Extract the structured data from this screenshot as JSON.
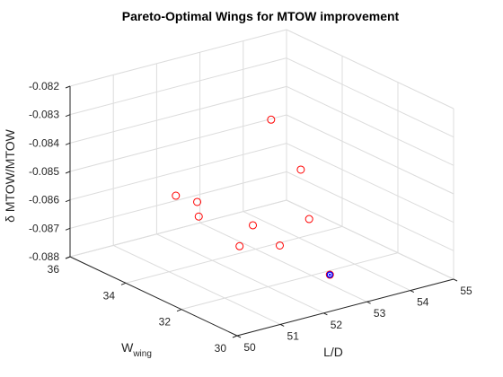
{
  "chart_data": {
    "type": "scatter3d",
    "title": "Pareto-Optimal Wings for MTOW improvement",
    "xlabel": "L/D",
    "ylabel_base": "W",
    "ylabel_sub": "wing",
    "zlabel": "δ MTOW/MTOW",
    "xlim": [
      50,
      55
    ],
    "ylim": [
      30,
      36
    ],
    "zlim": [
      -0.088,
      -0.082
    ],
    "xticks": [
      "50",
      "51",
      "52",
      "53",
      "54",
      "55"
    ],
    "yticks": [
      "30",
      "32",
      "34",
      "36"
    ],
    "zticks": [
      "-0.088",
      "-0.087",
      "-0.086",
      "-0.085",
      "-0.084",
      "-0.083",
      "-0.082"
    ],
    "grid": true,
    "marker_color": "#ff0000",
    "highlight_color": "#0000ff",
    "points": [
      {
        "x": 50.9,
        "y": 33.6,
        "z": -0.0851
      },
      {
        "x": 51.2,
        "y": 33.3,
        "z": -0.0853
      },
      {
        "x": 51.6,
        "y": 32.4,
        "z": -0.0866
      },
      {
        "x": 51.3,
        "y": 33.4,
        "z": -0.0859
      },
      {
        "x": 52.1,
        "y": 32.7,
        "z": -0.0862
      },
      {
        "x": 52.4,
        "y": 32.2,
        "z": -0.0868
      },
      {
        "x": 53.4,
        "y": 33.0,
        "z": -0.0849
      },
      {
        "x": 53.1,
        "y": 33.6,
        "z": -0.0833
      },
      {
        "x": 53.4,
        "y": 32.7,
        "z": -0.0865
      },
      {
        "x": 53.3,
        "y": 31.8,
        "z": -0.088
      }
    ],
    "highlighted_point": {
      "x": 53.3,
      "y": 31.8,
      "z": -0.088
    }
  }
}
